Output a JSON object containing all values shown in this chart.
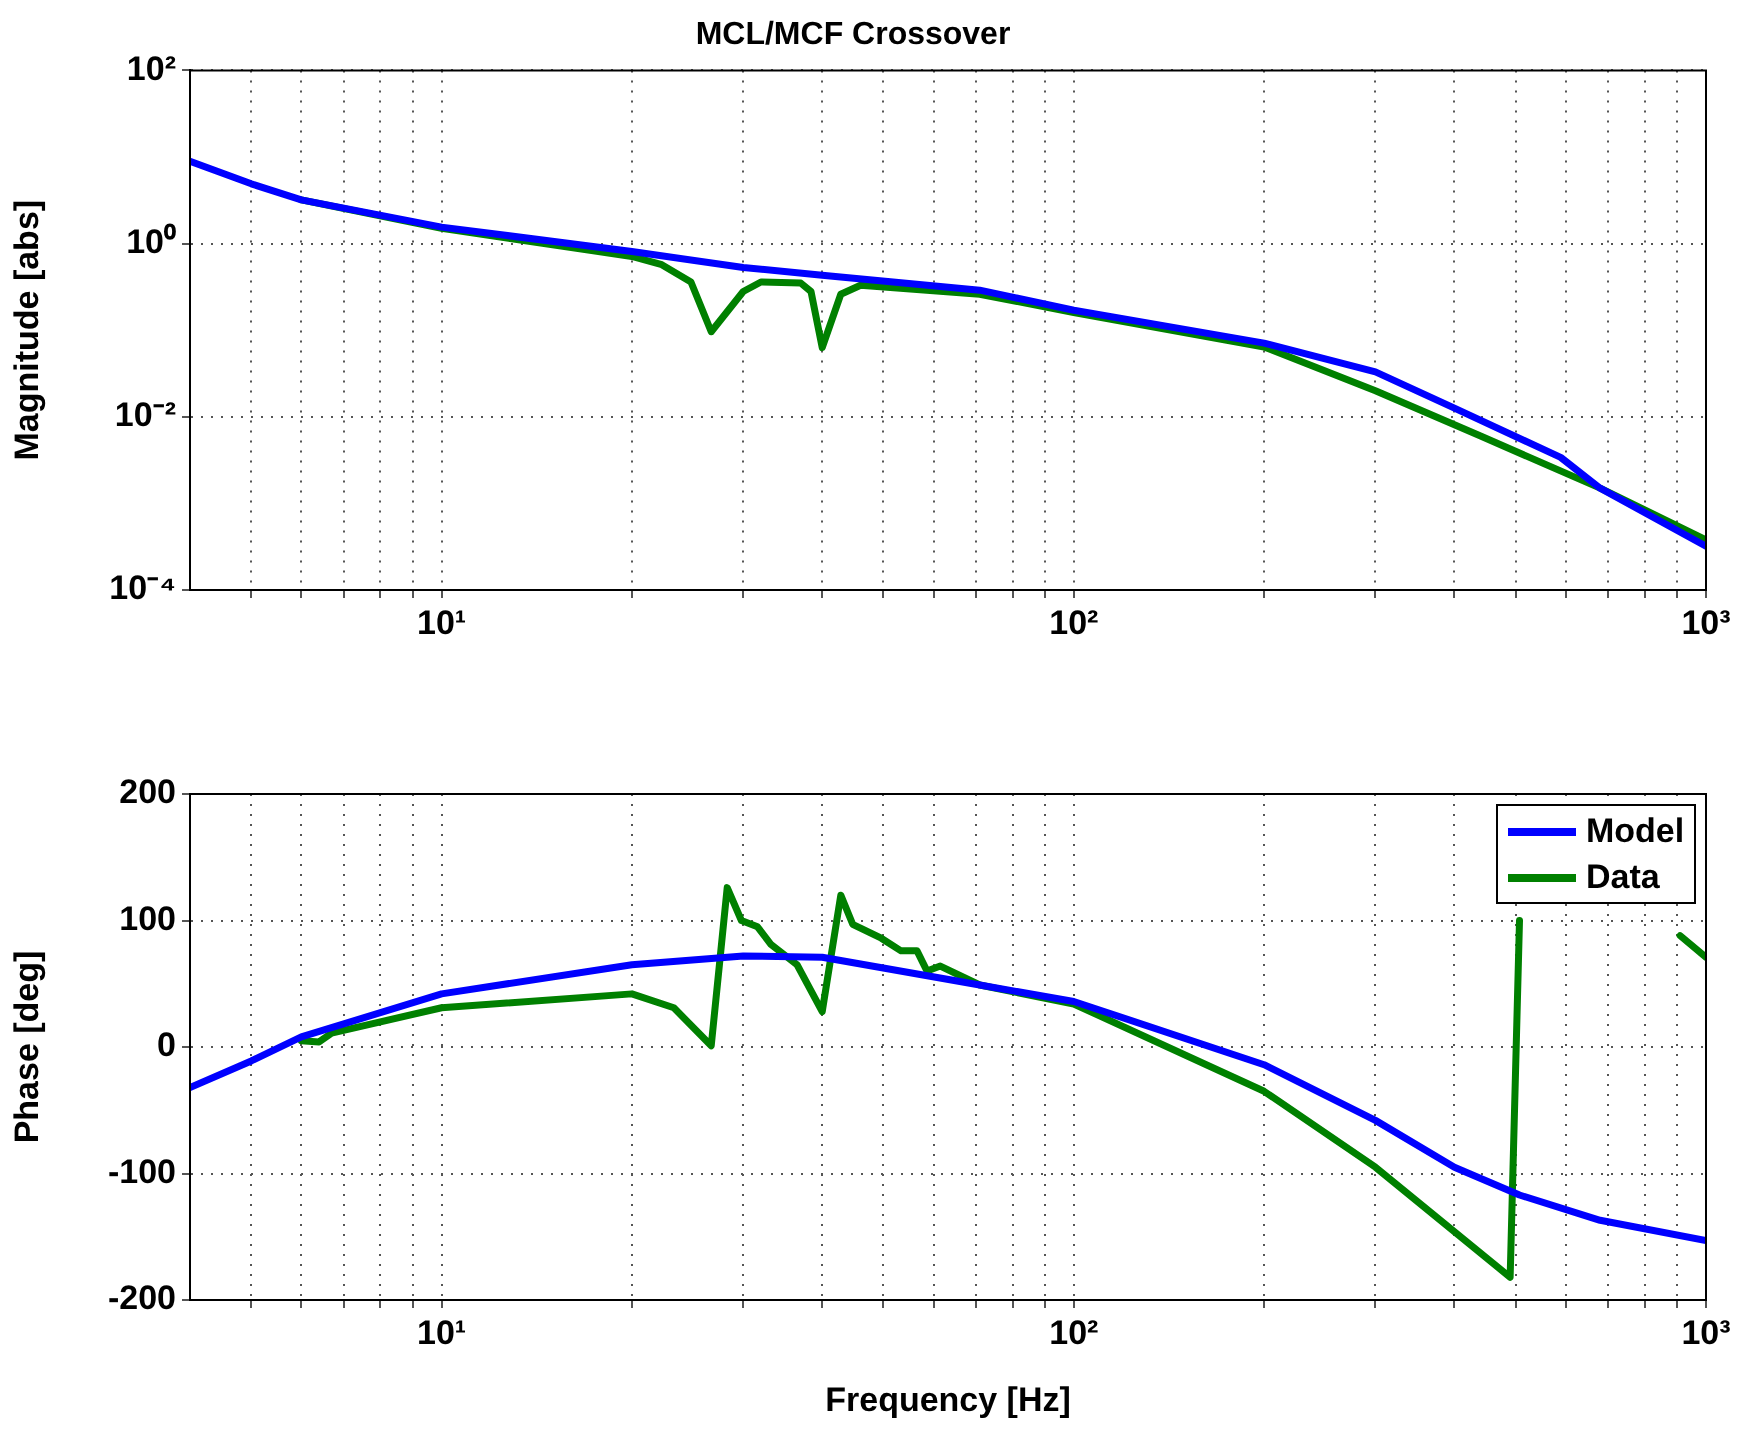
{
  "chart_data": [
    {
      "type": "line",
      "title": "MCL/MCF Crossover",
      "ylabel": "Magnitude [abs]",
      "log": "xy",
      "grid": true,
      "marker": "none",
      "line_style": "solid",
      "xlim": [
        4,
        1000
      ],
      "ylim": [
        0.0001,
        100
      ],
      "xticks": [
        {
          "value": 5,
          "label": null
        },
        {
          "value": 6,
          "label": null
        },
        {
          "value": 7,
          "label": null
        },
        {
          "value": 8,
          "label": null
        },
        {
          "value": 9,
          "label": null
        },
        {
          "value": 10,
          "label": "10¹"
        },
        {
          "value": 20,
          "label": null
        },
        {
          "value": 30,
          "label": null
        },
        {
          "value": 40,
          "label": null
        },
        {
          "value": 50,
          "label": null
        },
        {
          "value": 60,
          "label": null
        },
        {
          "value": 70,
          "label": null
        },
        {
          "value": 80,
          "label": null
        },
        {
          "value": 90,
          "label": null
        },
        {
          "value": 100,
          "label": "10²"
        },
        {
          "value": 200,
          "label": null
        },
        {
          "value": 300,
          "label": null
        },
        {
          "value": 400,
          "label": null
        },
        {
          "value": 500,
          "label": null
        },
        {
          "value": 600,
          "label": null
        },
        {
          "value": 700,
          "label": null
        },
        {
          "value": 800,
          "label": null
        },
        {
          "value": 900,
          "label": null
        },
        {
          "value": 1000,
          "label": "10³"
        }
      ],
      "yticks": [
        {
          "value": 0.0001,
          "label": "10⁻⁴"
        },
        {
          "value": 0.01,
          "label": "10⁻²"
        },
        {
          "value": 1,
          "label": "10⁰"
        },
        {
          "value": 100,
          "label": "10²"
        }
      ],
      "series": [
        {
          "color": "#0000ff",
          "x": [
            4,
            5,
            6,
            10,
            20,
            30,
            40,
            71,
            100,
            200,
            300,
            400,
            589,
            680,
            1000
          ],
          "values": [
            8.9,
            4.9,
            3.2,
            1.55,
            0.81,
            0.53,
            0.43,
            0.29,
            0.17,
            0.071,
            0.033,
            0.0126,
            0.0034,
            0.0015,
            0.00032
          ]
        },
        {
          "color": "#008000",
          "x": [
            6,
            10,
            20,
            22.3,
            24.8,
            26.7,
            30,
            32,
            37,
            38.4,
            40,
            42.8,
            46,
            71,
            100,
            200,
            300,
            440,
            680,
            1000
          ],
          "values": [
            3.2,
            1.5,
            0.71,
            0.57,
            0.36,
            0.096,
            0.28,
            0.36,
            0.35,
            0.28,
            0.063,
            0.26,
            0.33,
            0.26,
            0.16,
            0.064,
            0.02,
            0.006,
            0.0015,
            0.00038
          ]
        }
      ]
    },
    {
      "type": "line",
      "xlabel": "Frequency [Hz]",
      "ylabel": "Phase [deg]",
      "log": "x",
      "grid": true,
      "marker": "none",
      "line_style": "solid",
      "legend": "top right",
      "xlim": [
        4,
        1000
      ],
      "ylim": [
        -200,
        200
      ],
      "xticks": [
        {
          "value": 5,
          "label": null
        },
        {
          "value": 6,
          "label": null
        },
        {
          "value": 7,
          "label": null
        },
        {
          "value": 8,
          "label": null
        },
        {
          "value": 9,
          "label": null
        },
        {
          "value": 10,
          "label": "10¹"
        },
        {
          "value": 20,
          "label": null
        },
        {
          "value": 30,
          "label": null
        },
        {
          "value": 40,
          "label": null
        },
        {
          "value": 50,
          "label": null
        },
        {
          "value": 60,
          "label": null
        },
        {
          "value": 70,
          "label": null
        },
        {
          "value": 80,
          "label": null
        },
        {
          "value": 90,
          "label": null
        },
        {
          "value": 100,
          "label": "10²"
        },
        {
          "value": 200,
          "label": null
        },
        {
          "value": 300,
          "label": null
        },
        {
          "value": 400,
          "label": null
        },
        {
          "value": 500,
          "label": null
        },
        {
          "value": 600,
          "label": null
        },
        {
          "value": 700,
          "label": null
        },
        {
          "value": 800,
          "label": null
        },
        {
          "value": 900,
          "label": null
        },
        {
          "value": 1000,
          "label": "10³"
        }
      ],
      "yticks": [
        -200,
        -100,
        0,
        100,
        200
      ],
      "series": [
        {
          "name": "Model",
          "color": "#0000ff",
          "x": [
            4,
            5,
            6,
            10,
            20,
            30,
            40,
            71,
            100,
            200,
            300,
            400,
            507,
            680,
            1000
          ],
          "values": [
            -32,
            -11,
            8,
            42,
            65,
            72,
            71,
            49,
            36,
            -14,
            -58,
            -95,
            -117,
            -137,
            -153
          ]
        },
        {
          "name": "Data",
          "color": "#008000",
          "x": [
            6,
            6.4,
            6.7,
            10,
            20,
            23.3,
            26.7,
            28.3,
            29.8,
            31.6,
            33.2,
            36.5,
            40,
            42.8,
            44.7,
            49.6,
            53.3,
            56.5,
            58.6,
            61.5,
            71,
            100,
            200,
            300,
            490,
            507,
            650,
            910,
            1000
          ],
          "values": [
            5,
            4,
            11,
            31,
            42,
            31,
            1,
            126,
            100,
            95,
            81,
            65,
            28,
            120,
            97,
            86,
            76,
            76,
            60,
            64,
            49,
            34,
            -35,
            -95,
            -182,
            100,
            null,
            88,
            71
          ]
        }
      ]
    }
  ]
}
